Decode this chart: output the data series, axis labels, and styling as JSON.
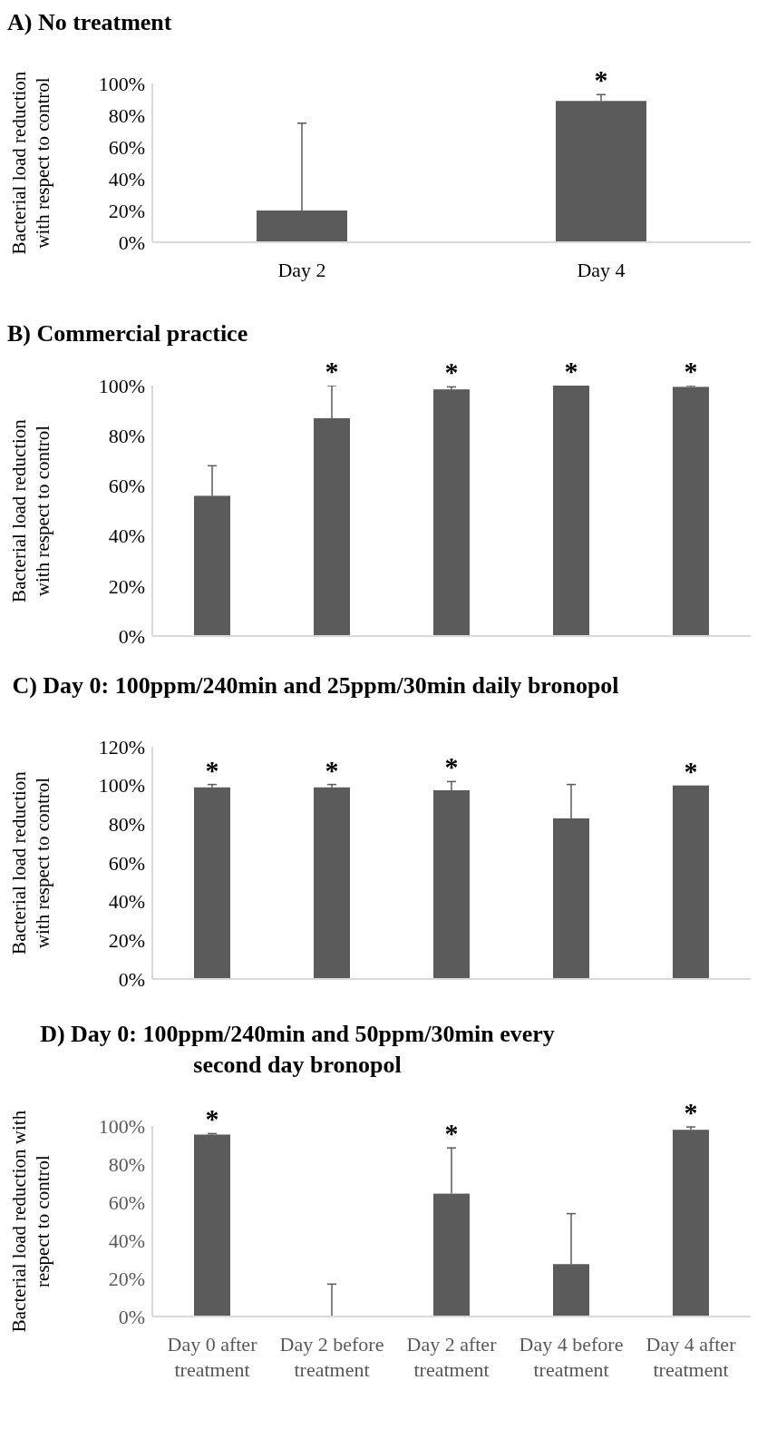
{
  "chart_data": [
    {
      "type": "bar",
      "title": "A) No treatment",
      "ylabel": "Bacterial load reduction with respect to control",
      "categories": [
        "Day 2",
        "Day 4"
      ],
      "values": [
        20,
        89
      ],
      "errors": [
        [
          20,
          75
        ],
        [
          89,
          93
        ]
      ],
      "value_labels": [
        null,
        "*"
      ],
      "color": "#5b5b5b",
      "ylim": [
        0,
        100
      ],
      "yticks": [
        {
          "value": 0,
          "label": "0%"
        },
        {
          "value": 20,
          "label": "20%"
        },
        {
          "value": 40,
          "label": "40%"
        },
        {
          "value": 60,
          "label": "60%"
        },
        {
          "value": 80,
          "label": "80%"
        },
        {
          "value": 100,
          "label": "100%"
        }
      ],
      "grid": false,
      "legend": false
    },
    {
      "type": "bar",
      "title": "B) Commercial practice",
      "ylabel": "Bacterial load reduction with respect to control",
      "categories": [
        null,
        null,
        null,
        null,
        null
      ],
      "values": [
        56,
        87,
        98.5,
        100,
        99.5
      ],
      "errors": [
        [
          56,
          68
        ],
        [
          87,
          100
        ],
        [
          98.5,
          99.5
        ],
        null,
        [
          99.5,
          100
        ]
      ],
      "value_labels": [
        null,
        "*",
        "*",
        "*",
        "*"
      ],
      "color": "#5b5b5b",
      "ylim": [
        0,
        100
      ],
      "yticks": [
        {
          "value": 0,
          "label": "0%"
        },
        {
          "value": 20,
          "label": "20%"
        },
        {
          "value": 40,
          "label": "40%"
        },
        {
          "value": 60,
          "label": "60%"
        },
        {
          "value": 80,
          "label": "80%"
        },
        {
          "value": 100,
          "label": "100%"
        }
      ],
      "grid": false,
      "legend": false
    },
    {
      "type": "bar",
      "title": "C) Day 0: 100ppm/240min and 25ppm/30min daily bronopol",
      "ylabel": "Bacterial load reduction with respect to control",
      "categories": [
        null,
        null,
        null,
        null,
        null
      ],
      "values": [
        99,
        99,
        97.5,
        83,
        100
      ],
      "errors": [
        [
          99,
          100.5
        ],
        [
          99,
          100.5
        ],
        [
          97.5,
          102
        ],
        [
          83,
          100.5
        ],
        null
      ],
      "value_labels": [
        "*",
        "*",
        "*",
        null,
        "*"
      ],
      "color": "#5b5b5b",
      "ylim": [
        0,
        120
      ],
      "yticks": [
        {
          "value": 0,
          "label": "0%"
        },
        {
          "value": 20,
          "label": "20%"
        },
        {
          "value": 40,
          "label": "40%"
        },
        {
          "value": 60,
          "label": "60%"
        },
        {
          "value": 80,
          "label": "80%"
        },
        {
          "value": 100,
          "label": "100%"
        },
        {
          "value": 120,
          "label": "120%"
        }
      ],
      "grid": false,
      "legend": false
    },
    {
      "type": "bar",
      "title": "D) Day 0: 100ppm/240min and 50ppm/30min every second day bronopol",
      "ylabel": "Bacterial load reduction with respect to control",
      "categories": [
        "Day 0 after treatment",
        "Day 2 before treatment",
        "Day 2 after treatment",
        "Day 4 before treatment",
        "Day 4 after treatment"
      ],
      "values": [
        95.5,
        0,
        64.5,
        27.5,
        98
      ],
      "errors": [
        [
          95.5,
          96
        ],
        [
          0,
          17
        ],
        [
          64.5,
          88.5
        ],
        [
          27.5,
          54
        ],
        [
          98,
          99.5
        ]
      ],
      "value_labels": [
        "*",
        null,
        "*",
        null,
        "*"
      ],
      "color": "#5b5b5b",
      "ylim": [
        0,
        100
      ],
      "yticks": [
        {
          "value": 0,
          "label": "0%"
        },
        {
          "value": 20,
          "label": "20%"
        },
        {
          "value": 40,
          "label": "40%"
        },
        {
          "value": 60,
          "label": "60%"
        },
        {
          "value": 80,
          "label": "80%"
        },
        {
          "value": 100,
          "label": "100%"
        }
      ],
      "grid": false,
      "legend": false
    }
  ]
}
